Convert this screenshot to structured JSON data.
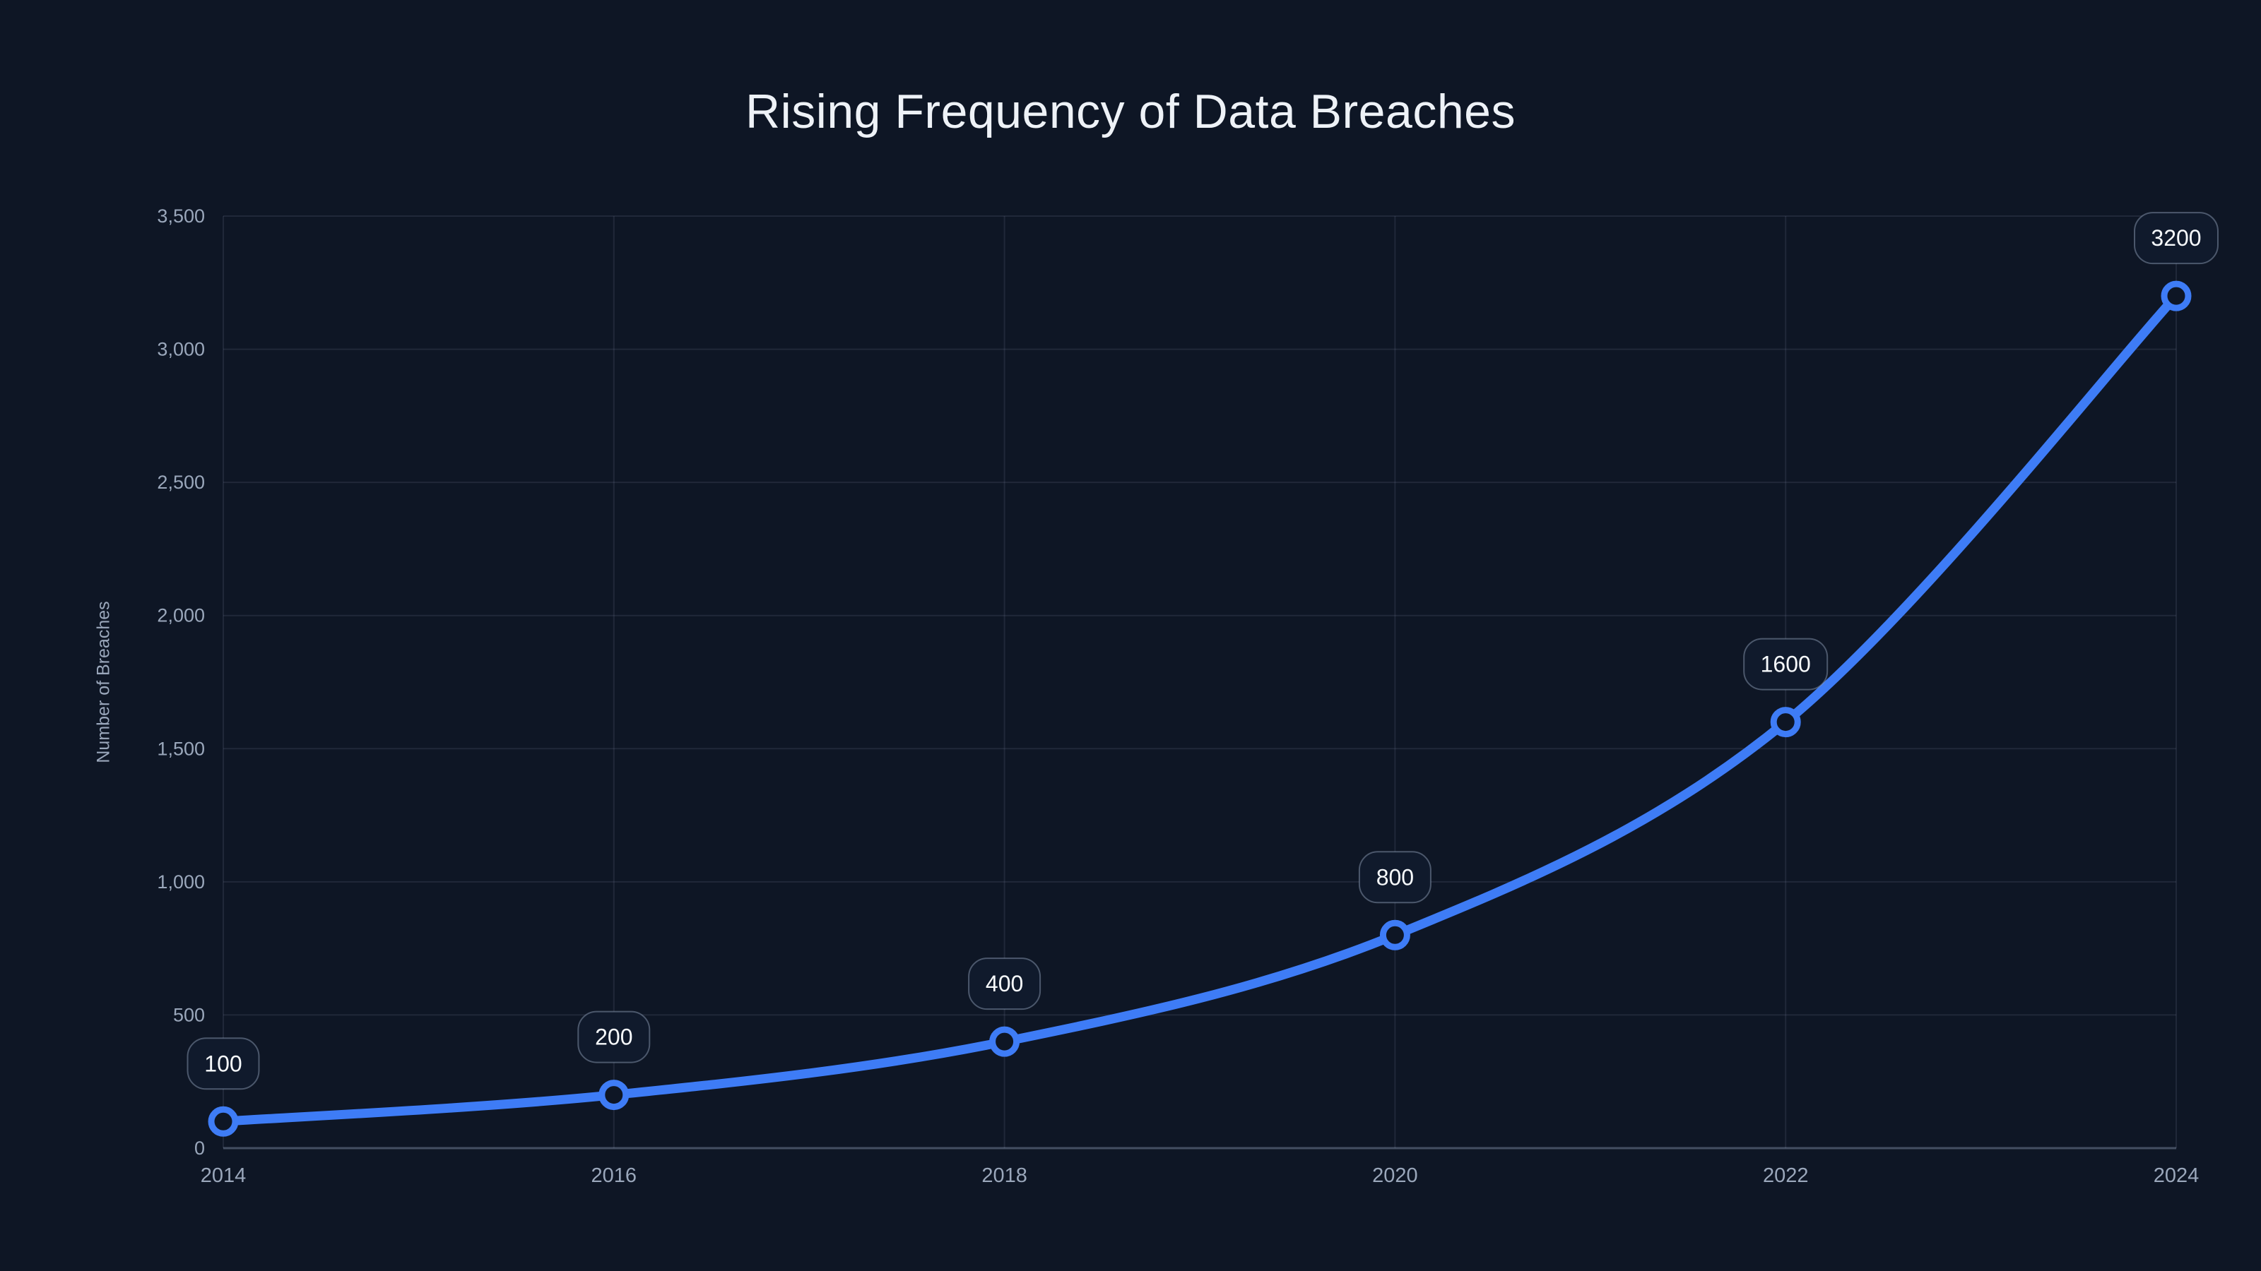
{
  "page": {
    "background_color": "#0e1625"
  },
  "chart_data": {
    "type": "line",
    "title": "Rising Frequency of Data Breaches",
    "xlabel": "",
    "ylabel": "Number of Breaches",
    "x": [
      2014,
      2016,
      2018,
      2020,
      2022,
      2024
    ],
    "x_tick_labels": [
      "2014",
      "2016",
      "2018",
      "2020",
      "2022",
      "2024"
    ],
    "values": [
      100,
      200,
      400,
      800,
      1600,
      3200
    ],
    "point_labels": [
      "100",
      "200",
      "400",
      "800",
      "1600",
      "3200"
    ],
    "ylim": [
      0,
      3500
    ],
    "y_ticks": [
      0,
      500,
      1000,
      1500,
      2000,
      2500,
      3000,
      3500
    ],
    "y_tick_labels": [
      "0",
      "500",
      "1,000",
      "1,500",
      "2,000",
      "2,500",
      "3,000",
      "3,500"
    ],
    "grid": true,
    "smooth": true,
    "legend_position": "none",
    "style": {
      "background": "#0e1625",
      "line_color": "#3e7cf6",
      "marker_ring_color": "#3e7cf6",
      "marker_fill_color": "#0e1625",
      "grid_color": "rgba(151,166,190,0.13)",
      "axis_line_color": "rgba(151,166,190,0.40)",
      "tick_label_color": "#9aa7bb",
      "title_color": "#eef2f7",
      "point_label_text_color": "#f7fafc",
      "point_label_border_color": "rgba(151,166,190,0.45)",
      "point_label_bg_color": "#101a2c"
    }
  }
}
